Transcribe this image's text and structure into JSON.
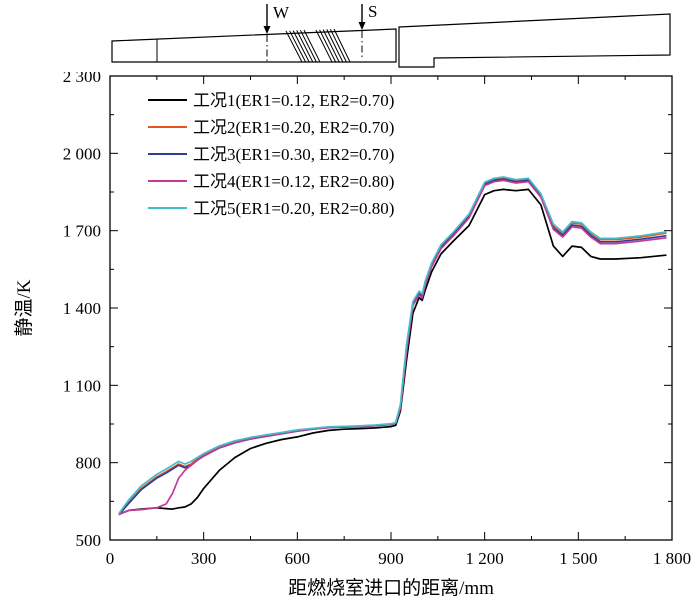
{
  "schematic": {
    "label_w": "W",
    "label_s": "S"
  },
  "chart_data": {
    "type": "line",
    "title": "",
    "xlabel": "距燃烧室进口的距离/mm",
    "ylabel": "静温/K",
    "xlim": [
      0,
      1800
    ],
    "ylim": [
      500,
      2300
    ],
    "grid": false,
    "legend_position": "top-left",
    "x_tick_values": [
      0,
      300,
      600,
      900,
      1200,
      1500,
      1800
    ],
    "x_tick_labels": [
      "0",
      "300",
      "600",
      "900",
      "1 200",
      "1 500",
      "1 800"
    ],
    "y_tick_values": [
      500,
      800,
      1100,
      1400,
      1700,
      2000,
      2300
    ],
    "y_tick_labels": [
      "500",
      "800",
      "1 100",
      "1 400",
      "1 700",
      "2 000",
      "2 300"
    ],
    "x_minor_step": 150,
    "y_minor_step": 150,
    "x": [
      30,
      60,
      100,
      150,
      180,
      200,
      220,
      240,
      260,
      280,
      300,
      350,
      400,
      450,
      500,
      550,
      600,
      650,
      700,
      750,
      800,
      850,
      900,
      915,
      930,
      950,
      970,
      990,
      1000,
      1010,
      1030,
      1060,
      1100,
      1150,
      1200,
      1230,
      1260,
      1300,
      1340,
      1380,
      1420,
      1450,
      1480,
      1510,
      1540,
      1570,
      1620,
      1700,
      1780
    ],
    "series": [
      {
        "name": "工况1(ER1=0.12, ER2=0.70)",
        "color": "#000000",
        "values": [
          600,
          615,
          620,
          625,
          622,
          620,
          625,
          628,
          640,
          665,
          700,
          770,
          820,
          855,
          875,
          890,
          900,
          915,
          925,
          930,
          932,
          935,
          940,
          945,
          1000,
          1200,
          1380,
          1440,
          1430,
          1470,
          1540,
          1610,
          1660,
          1720,
          1840,
          1855,
          1860,
          1855,
          1860,
          1800,
          1640,
          1600,
          1640,
          1635,
          1600,
          1590,
          1590,
          1595,
          1605
        ]
      },
      {
        "name": "工况2(ER1=0.20, ER2=0.70)",
        "color": "#e8541e",
        "values": [
          600,
          645,
          700,
          745,
          765,
          780,
          795,
          785,
          795,
          815,
          830,
          860,
          880,
          895,
          905,
          915,
          925,
          932,
          938,
          940,
          942,
          945,
          950,
          955,
          1020,
          1250,
          1420,
          1460,
          1450,
          1500,
          1570,
          1640,
          1690,
          1760,
          1885,
          1900,
          1905,
          1895,
          1900,
          1840,
          1720,
          1690,
          1730,
          1725,
          1690,
          1665,
          1665,
          1675,
          1690
        ]
      },
      {
        "name": "工况3(ER1=0.30, ER2=0.70)",
        "color": "#2e3f96",
        "values": [
          600,
          642,
          695,
          740,
          760,
          775,
          790,
          780,
          790,
          810,
          826,
          857,
          877,
          892,
          902,
          912,
          922,
          930,
          936,
          938,
          940,
          943,
          948,
          953,
          1015,
          1240,
          1415,
          1455,
          1445,
          1495,
          1565,
          1635,
          1685,
          1755,
          1880,
          1895,
          1900,
          1890,
          1895,
          1835,
          1712,
          1682,
          1722,
          1717,
          1682,
          1657,
          1657,
          1667,
          1680
        ]
      },
      {
        "name": "工况4(ER1=0.12, ER2=0.80)",
        "color": "#c13b97",
        "values": [
          600,
          615,
          618,
          625,
          640,
          680,
          740,
          770,
          790,
          810,
          825,
          858,
          878,
          893,
          903,
          913,
          923,
          930,
          936,
          939,
          941,
          944,
          949,
          954,
          1010,
          1230,
          1410,
          1450,
          1440,
          1490,
          1560,
          1630,
          1680,
          1750,
          1875,
          1890,
          1895,
          1885,
          1890,
          1830,
          1705,
          1675,
          1715,
          1710,
          1675,
          1650,
          1650,
          1660,
          1672
        ]
      },
      {
        "name": "工况5(ER1=0.20, ER2=0.80)",
        "color": "#45bec8",
        "values": [
          605,
          655,
          710,
          755,
          775,
          790,
          805,
          795,
          805,
          820,
          835,
          865,
          885,
          898,
          908,
          917,
          927,
          933,
          939,
          941,
          943,
          946,
          951,
          956,
          1025,
          1260,
          1425,
          1465,
          1455,
          1505,
          1575,
          1645,
          1695,
          1765,
          1888,
          1903,
          1908,
          1898,
          1903,
          1843,
          1725,
          1695,
          1735,
          1730,
          1695,
          1670,
          1670,
          1680,
          1695
        ]
      }
    ]
  }
}
